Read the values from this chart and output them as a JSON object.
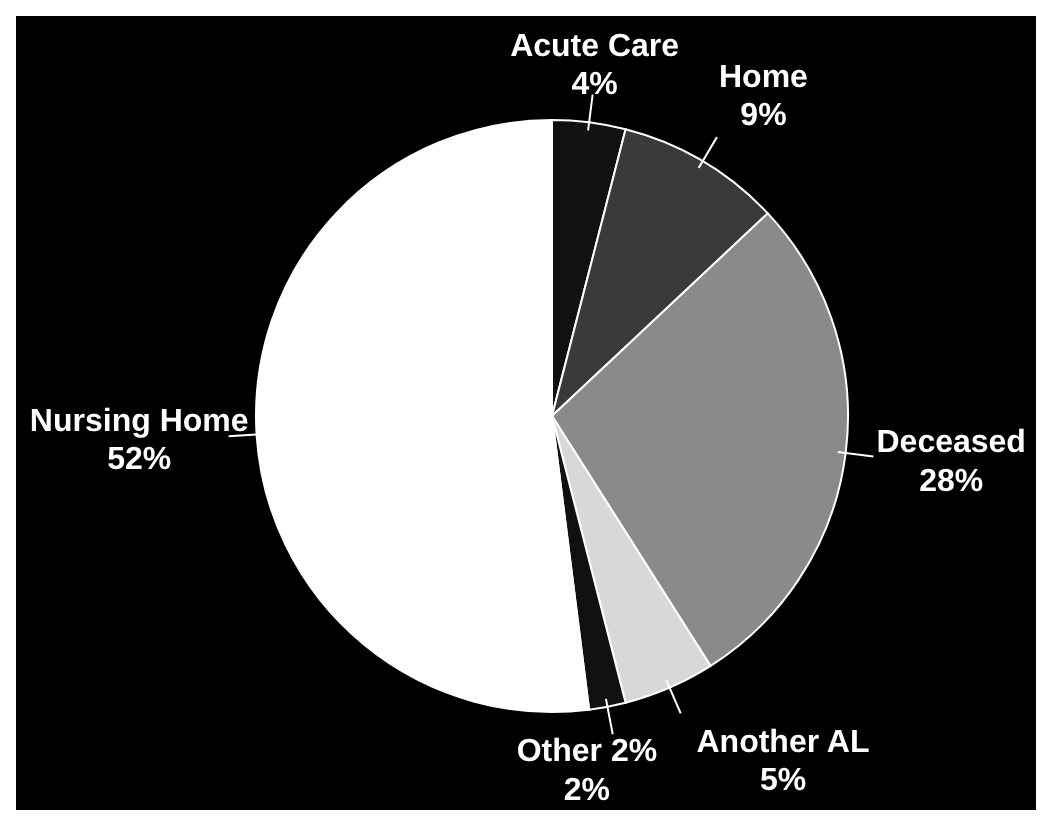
{
  "chart_data": {
    "type": "pie",
    "categories": [
      "Acute Care",
      "Home",
      "Deceased",
      "Another AL",
      "Other 2%",
      "Nursing Home"
    ],
    "values": [
      4,
      9,
      28,
      5,
      2,
      52
    ],
    "colors": [
      "#111111",
      "#3a3a3a",
      "#8a8a8a",
      "#d8d8d8",
      "#111111",
      "#ffffff"
    ],
    "value_labels": [
      "4%",
      "9%",
      "28%",
      "5%",
      "2%",
      "52%"
    ]
  }
}
